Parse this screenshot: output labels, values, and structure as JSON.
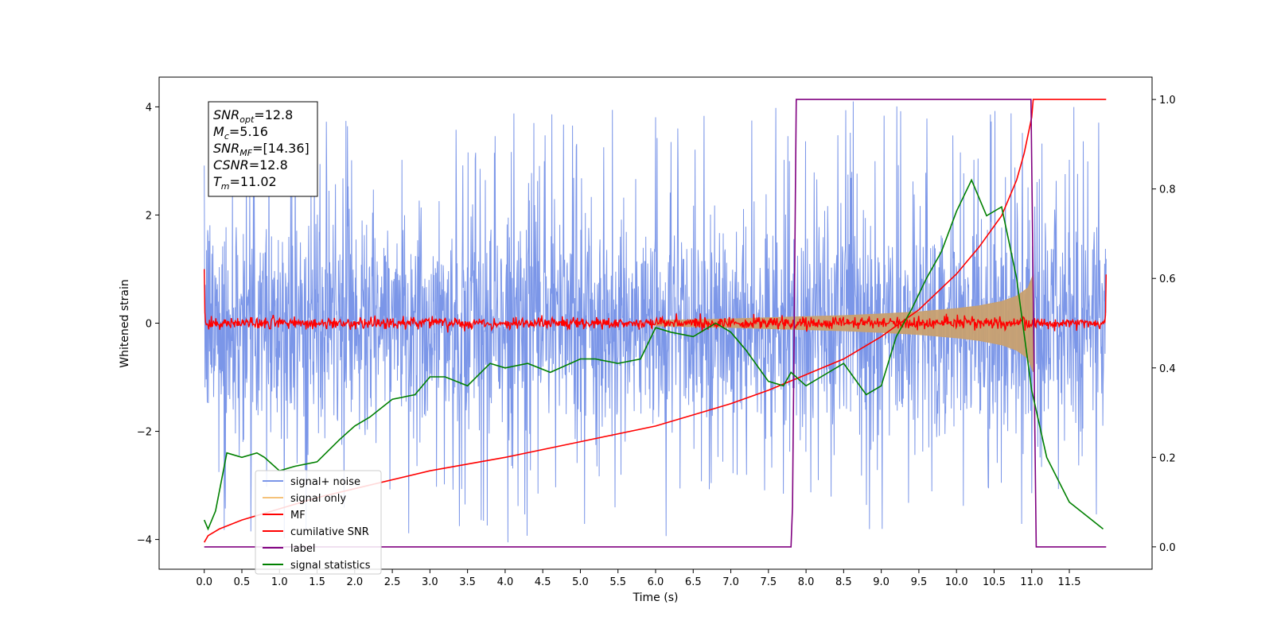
{
  "chart_data": {
    "type": "line",
    "xlabel": "Time (s)",
    "ylabel": "Whitened strain",
    "xlim": [
      -0.6,
      12.6
    ],
    "ylim_left": [
      -4.55,
      4.55
    ],
    "ylim_right": [
      -0.05,
      1.05
    ],
    "x_ticks": [
      0.0,
      0.5,
      1.0,
      1.5,
      2.0,
      2.5,
      3.0,
      3.5,
      4.0,
      4.5,
      5.0,
      5.5,
      6.0,
      6.5,
      7.0,
      7.5,
      8.0,
      8.5,
      9.0,
      9.5,
      10.0,
      10.5,
      11.0,
      11.5
    ],
    "x_tick_labels": [
      "0.0",
      "0.5",
      "1.0",
      "1.5",
      "2.0",
      "2.5",
      "3.0",
      "3.5",
      "4.0",
      "4.5",
      "5.0",
      "5.5",
      "6.0",
      "6.5",
      "7.0",
      "7.5",
      "8.0",
      "8.5",
      "9.0",
      "9.5",
      "10.0",
      "10.5",
      "11.0",
      "11.5"
    ],
    "y_left_ticks": [
      -4,
      -2,
      0,
      2,
      4
    ],
    "y_left_tick_labels": [
      "−4",
      "−2",
      "0",
      "2",
      "4"
    ],
    "y_right_ticks": [
      0.0,
      0.2,
      0.4,
      0.6,
      0.8,
      1.0
    ],
    "y_right_tick_labels": [
      "0.0",
      "0.2",
      "0.4",
      "0.6",
      "0.8",
      "1.0"
    ],
    "annotation": {
      "lines": [
        {
          "main": "SNR",
          "sub": "opt",
          "rest": "=12.8"
        },
        {
          "main": "M",
          "sub": "c",
          "rest": "=5.16"
        },
        {
          "main": "SNR",
          "sub": "MF",
          "rest": "=[14.36]"
        },
        {
          "main": "CSNR",
          "sub": "",
          "rest": "=12.8"
        },
        {
          "main": "T",
          "sub": "m",
          "rest": "=11.02"
        }
      ]
    },
    "legend": {
      "position": "lower-left",
      "entries": [
        {
          "label": "signal+ noise",
          "color": "#7b96e8"
        },
        {
          "label": "signal only",
          "color": "#f5c27a"
        },
        {
          "label": "MF",
          "color": "#ff0000"
        },
        {
          "label": "cumilative SNR",
          "color": "#ff0000"
        },
        {
          "label": "label",
          "color": "#800080"
        },
        {
          "label": "signal statistics",
          "color": "#008000"
        }
      ]
    },
    "series": [
      {
        "name": "signal+ noise",
        "axis": "left",
        "color": "#7b96e8",
        "x_range": [
          0.0,
          11.99
        ],
        "description": "noise band approx -2.5..2.5 with spikes to about -4.1 and 4.1"
      },
      {
        "name": "signal only",
        "axis": "left",
        "color": "#c8a070",
        "envelope": {
          "x": [
            6.0,
            7.0,
            8.0,
            8.5,
            9.0,
            9.5,
            10.0,
            10.3,
            10.6,
            10.8,
            10.95,
            11.02
          ],
          "amp": [
            0.05,
            0.08,
            0.12,
            0.14,
            0.17,
            0.21,
            0.27,
            0.32,
            0.4,
            0.5,
            0.65,
            0.9
          ]
        }
      },
      {
        "name": "MF",
        "axis": "left",
        "color": "#ff0000",
        "x_range": [
          0.0,
          11.99
        ],
        "description": "noisy trace around 0 with small amplitude, spike to 1.0 at start and 0.9 at end"
      },
      {
        "name": "cumilative SNR",
        "axis": "right",
        "color": "#ff0000",
        "x": [
          0.0,
          0.05,
          0.2,
          0.5,
          1.0,
          1.5,
          2.0,
          3.0,
          4.0,
          5.0,
          6.0,
          7.0,
          7.5,
          8.0,
          8.5,
          9.0,
          9.5,
          10.0,
          10.3,
          10.6,
          10.8,
          10.9,
          11.0,
          11.02,
          11.99
        ],
        "y": [
          0.01,
          0.025,
          0.04,
          0.06,
          0.085,
          0.11,
          0.13,
          0.17,
          0.2,
          0.235,
          0.27,
          0.32,
          0.35,
          0.385,
          0.42,
          0.47,
          0.53,
          0.61,
          0.67,
          0.74,
          0.82,
          0.88,
          0.96,
          1.0,
          1.0
        ]
      },
      {
        "name": "label",
        "axis": "right",
        "color": "#800080",
        "x": [
          0.0,
          7.8,
          7.82,
          7.87,
          10.99,
          11.06,
          11.99
        ],
        "y": [
          0.0,
          0.0,
          0.09,
          1.0,
          1.0,
          0.0,
          0.0
        ]
      },
      {
        "name": "signal statistics",
        "axis": "right",
        "color": "#008000",
        "x": [
          0.0,
          0.05,
          0.15,
          0.3,
          0.5,
          0.7,
          0.8,
          1.0,
          1.2,
          1.5,
          1.8,
          2.0,
          2.2,
          2.5,
          2.8,
          3.0,
          3.2,
          3.5,
          3.8,
          4.0,
          4.3,
          4.6,
          5.0,
          5.2,
          5.5,
          5.8,
          6.0,
          6.2,
          6.5,
          6.8,
          7.0,
          7.2,
          7.5,
          7.7,
          7.8,
          8.0,
          8.2,
          8.5,
          8.8,
          9.0,
          9.2,
          9.4,
          9.6,
          9.8,
          10.0,
          10.2,
          10.4,
          10.6,
          10.8,
          11.0,
          11.2,
          11.5,
          11.8,
          11.95
        ],
        "y": [
          0.06,
          0.04,
          0.08,
          0.21,
          0.2,
          0.21,
          0.2,
          0.17,
          0.18,
          0.19,
          0.24,
          0.27,
          0.29,
          0.33,
          0.34,
          0.38,
          0.38,
          0.36,
          0.41,
          0.4,
          0.41,
          0.39,
          0.42,
          0.42,
          0.41,
          0.42,
          0.49,
          0.48,
          0.47,
          0.5,
          0.48,
          0.44,
          0.37,
          0.36,
          0.39,
          0.36,
          0.38,
          0.41,
          0.34,
          0.36,
          0.47,
          0.53,
          0.6,
          0.66,
          0.75,
          0.82,
          0.74,
          0.76,
          0.6,
          0.35,
          0.2,
          0.1,
          0.06,
          0.04
        ]
      }
    ]
  }
}
